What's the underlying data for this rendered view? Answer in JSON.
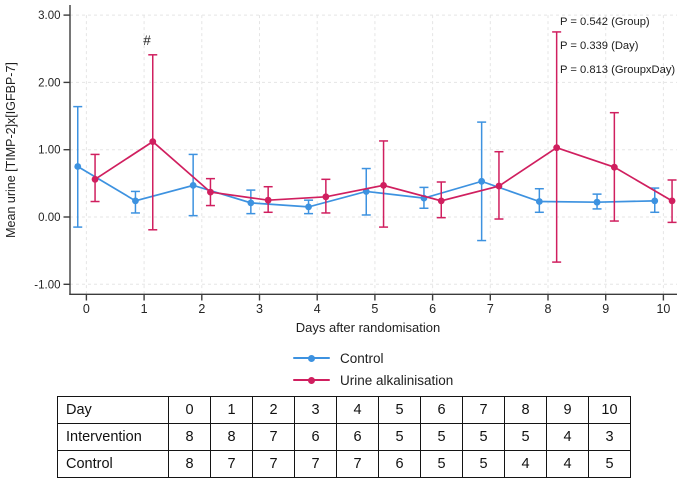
{
  "colors": {
    "control": "#3D92E0",
    "intervention": "#D01F5F",
    "grid": "#e5e5e5",
    "axis": "#3c3c3c",
    "text": "#1f1f1f"
  },
  "chart_data": {
    "type": "line",
    "title": "",
    "xlabel": "Days after randomisation",
    "ylabel": "Mean urine [TIMP-2]x[IGFBP-7]",
    "x": [
      0,
      1,
      2,
      3,
      4,
      5,
      6,
      7,
      8,
      9,
      10
    ],
    "xlim": [
      -0.3,
      10.3
    ],
    "ylim": [
      -1.15,
      3.1
    ],
    "y_ticks": [
      -1,
      0,
      1,
      2,
      3
    ],
    "y_tick_labels": [
      "-1.00",
      "0.00",
      "1.00",
      "2.00",
      "3.00"
    ],
    "grid": "dashed, horizontal at each 1.00 and vertical at each day",
    "legend_position": "bottom-center",
    "series": [
      {
        "name": "Control",
        "color": "#3D92E0",
        "offset": -0.15,
        "values": [
          0.75,
          0.24,
          0.47,
          0.21,
          0.15,
          0.38,
          0.28,
          0.53,
          0.23,
          0.22,
          0.24
        ],
        "ci_low": [
          -0.15,
          0.06,
          0.02,
          0.05,
          0.05,
          0.03,
          0.13,
          -0.35,
          0.07,
          0.12,
          0.07
        ],
        "ci_high": [
          1.64,
          0.38,
          0.93,
          0.4,
          0.25,
          0.72,
          0.44,
          1.41,
          0.42,
          0.34,
          0.43
        ]
      },
      {
        "name": "Urine alkalinisation",
        "color": "#D01F5F",
        "offset": 0.15,
        "values": [
          0.56,
          1.12,
          0.37,
          0.25,
          0.3,
          0.47,
          0.24,
          0.46,
          1.03,
          0.74,
          0.24
        ],
        "ci_low": [
          0.23,
          -0.19,
          0.17,
          0.07,
          0.06,
          -0.15,
          -0.01,
          -0.03,
          -0.67,
          -0.06,
          -0.08
        ],
        "ci_high": [
          0.93,
          2.41,
          0.57,
          0.45,
          0.56,
          1.13,
          0.52,
          0.97,
          2.75,
          1.55,
          0.55
        ]
      }
    ],
    "hash_annotation": {
      "text": "#",
      "day": 1.05,
      "value": 2.62
    },
    "p_values": [
      "P = 0.542 (Group)",
      "P = 0.339 (Day)",
      "P = 0.813 (GroupxDay)"
    ]
  },
  "table": {
    "rows": [
      {
        "label": "Day",
        "cells": [
          "0",
          "1",
          "2",
          "3",
          "4",
          "5",
          "6",
          "7",
          "8",
          "9",
          "10"
        ]
      },
      {
        "label": "Intervention",
        "cells": [
          "8",
          "8",
          "7",
          "6",
          "6",
          "5",
          "5",
          "5",
          "5",
          "4",
          "3"
        ]
      },
      {
        "label": "Control",
        "cells": [
          "8",
          "7",
          "7",
          "7",
          "7",
          "6",
          "5",
          "5",
          "4",
          "4",
          "5"
        ]
      }
    ]
  }
}
